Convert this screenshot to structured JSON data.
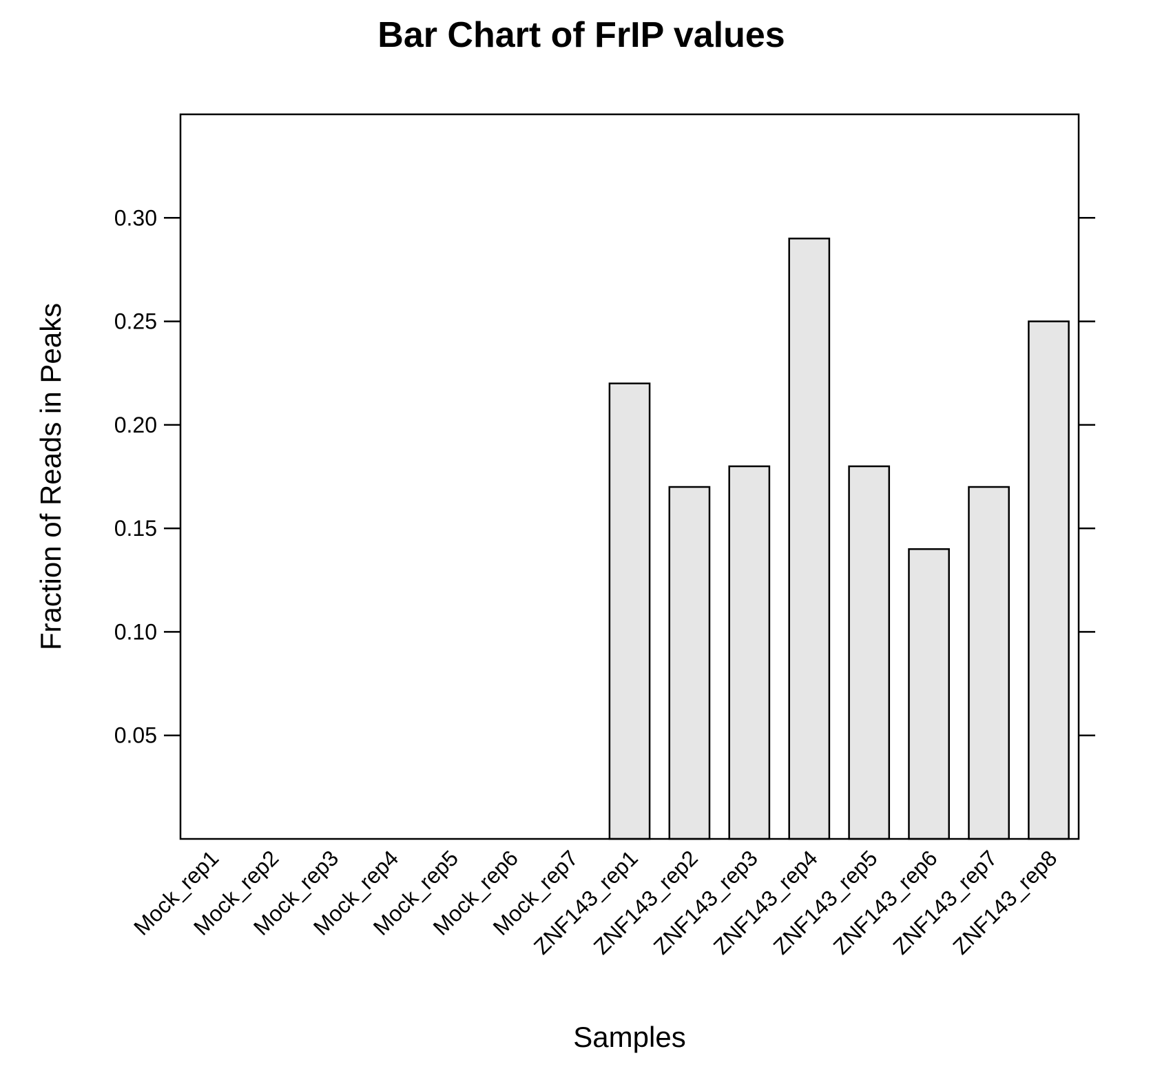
{
  "chart_data": {
    "type": "bar",
    "title": "Bar Chart of FrIP values",
    "xlabel": "Samples",
    "ylabel": "Fraction of Reads in Peaks",
    "categories": [
      "Mock_rep1",
      "Mock_rep2",
      "Mock_rep3",
      "Mock_rep4",
      "Mock_rep5",
      "Mock_rep6",
      "Mock_rep7",
      "ZNF143_rep1",
      "ZNF143_rep2",
      "ZNF143_rep3",
      "ZNF143_rep4",
      "ZNF143_rep5",
      "ZNF143_rep6",
      "ZNF143_rep7",
      "ZNF143_rep8"
    ],
    "values": [
      0,
      0,
      0,
      0,
      0,
      0,
      0,
      0.22,
      0.17,
      0.18,
      0.29,
      0.18,
      0.14,
      0.17,
      0.25
    ],
    "ylim": [
      0,
      0.35
    ],
    "yticks": [
      "0.05",
      "0.10",
      "0.15",
      "0.20",
      "0.25",
      "0.30"
    ],
    "grid": false,
    "bar_color": "#e6e6e6"
  }
}
